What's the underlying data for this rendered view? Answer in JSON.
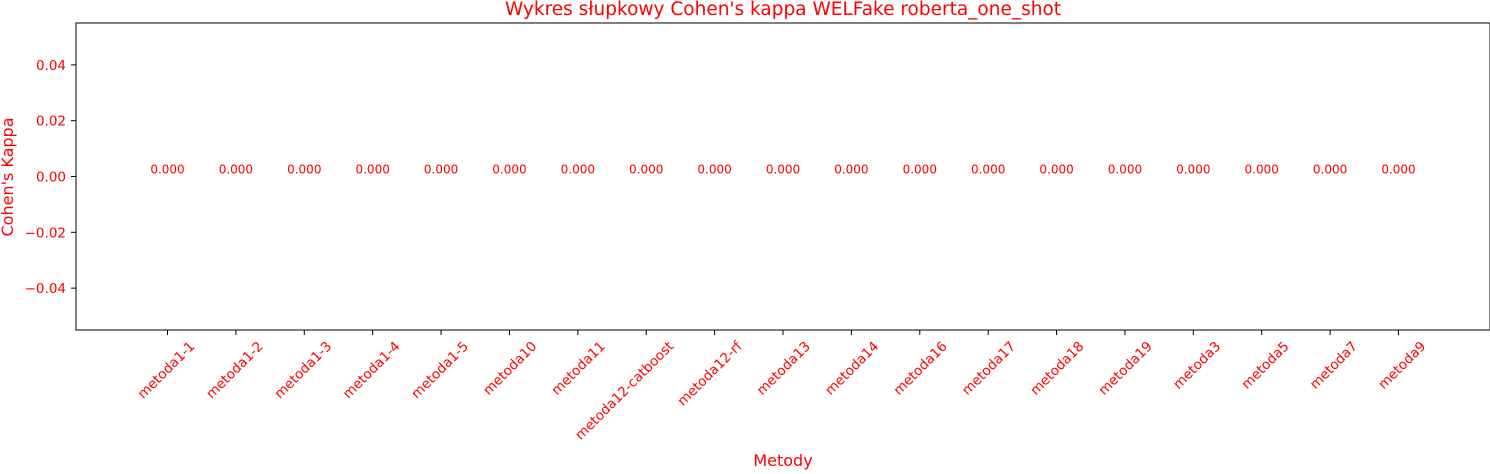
{
  "chart_data": {
    "type": "bar",
    "title": "Wykres słupkowy Cohen's kappa WELFake roberta_one_shot",
    "xlabel": "Metody",
    "ylabel": "Cohen's Kappa",
    "categories": [
      "metoda1-1",
      "metoda1-2",
      "metoda1-3",
      "metoda1-4",
      "metoda1-5",
      "metoda10",
      "metoda11",
      "metoda12-catboost",
      "metoda12-rf",
      "metoda13",
      "metoda14",
      "metoda16",
      "metoda17",
      "metoda18",
      "metoda19",
      "metoda3",
      "metoda5",
      "metoda7",
      "metoda9"
    ],
    "values": [
      0,
      0,
      0,
      0,
      0,
      0,
      0,
      0,
      0,
      0,
      0,
      0,
      0,
      0,
      0,
      0,
      0,
      0,
      0
    ],
    "value_labels": [
      "0.000",
      "0.000",
      "0.000",
      "0.000",
      "0.000",
      "0.000",
      "0.000",
      "0.000",
      "0.000",
      "0.000",
      "0.000",
      "0.000",
      "0.000",
      "0.000",
      "0.000",
      "0.000",
      "0.000",
      "0.000",
      "0.000"
    ],
    "ylim": [
      -0.055,
      0.055
    ],
    "yticks": [
      -0.04,
      -0.02,
      0.0,
      0.02,
      0.04
    ],
    "ytick_labels": [
      "−0.04",
      "−0.02",
      "0.00",
      "0.02",
      "0.04"
    ],
    "grid": false,
    "legend": "none",
    "text_color": "#ff0000",
    "axis_color": "#000000"
  }
}
